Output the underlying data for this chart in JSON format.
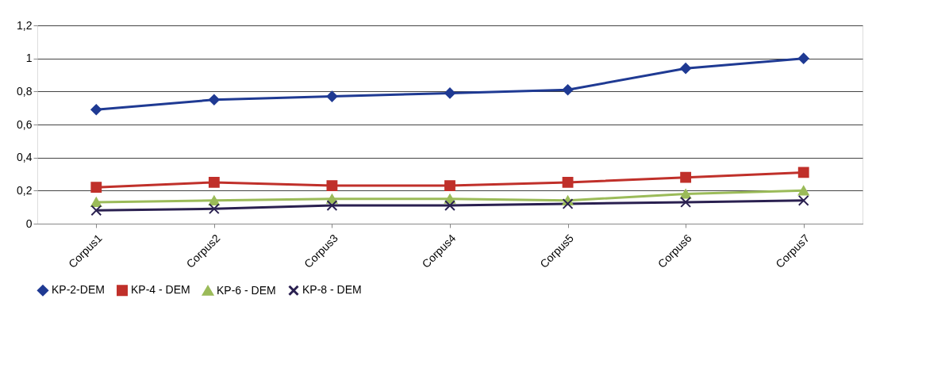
{
  "chart_data": {
    "type": "line",
    "categories": [
      "Corpus1",
      "Corpus2",
      "Corpus3",
      "Corpus4",
      "Corpus5",
      "Corpus6",
      "Corpus7"
    ],
    "series": [
      {
        "name": "KP-2-DEM",
        "color": "#1f3a93",
        "marker": "diamond",
        "values": [
          0.69,
          0.75,
          0.77,
          0.79,
          0.81,
          0.94,
          1.0
        ]
      },
      {
        "name": "KP-4 - DEM",
        "color": "#c0302a",
        "marker": "square",
        "values": [
          0.22,
          0.25,
          0.23,
          0.23,
          0.25,
          0.28,
          0.31
        ]
      },
      {
        "name": "KP-6 - DEM",
        "color": "#9bbb59",
        "marker": "triangle",
        "values": [
          0.13,
          0.14,
          0.15,
          0.15,
          0.14,
          0.18,
          0.2
        ]
      },
      {
        "name": "KP-8 - DEM",
        "color": "#2a2050",
        "marker": "cross",
        "values": [
          0.08,
          0.09,
          0.11,
          0.11,
          0.12,
          0.13,
          0.14
        ]
      }
    ],
    "ylim": [
      0,
      1.2
    ],
    "yticks": [
      0,
      {
        "value": 0.2,
        "label": "0,2"
      },
      {
        "value": 0.4,
        "label": "0,4"
      },
      {
        "value": 0.6,
        "label": "0,6"
      },
      {
        "value": 0.8,
        "label": "0,8"
      },
      1,
      {
        "value": 1.2,
        "label": "1,2"
      }
    ],
    "grid": "y",
    "legend": "bottom",
    "line_style": "solid"
  }
}
